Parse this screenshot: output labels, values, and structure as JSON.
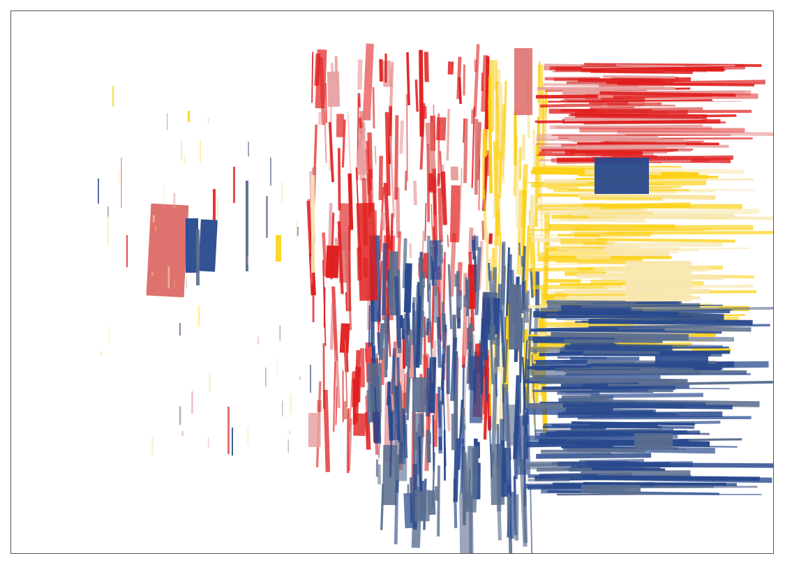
{
  "artwork": {
    "palette": {
      "red": "#e01e1e",
      "pink": "#dc6a66",
      "light_pink": "#e8a0a0",
      "yellow": "#fcd116",
      "light_yellow": "#f8e7b0",
      "navy": "#28498e",
      "slate": "#5b6e8f"
    },
    "background": "#ffffff",
    "border": "#555555"
  }
}
